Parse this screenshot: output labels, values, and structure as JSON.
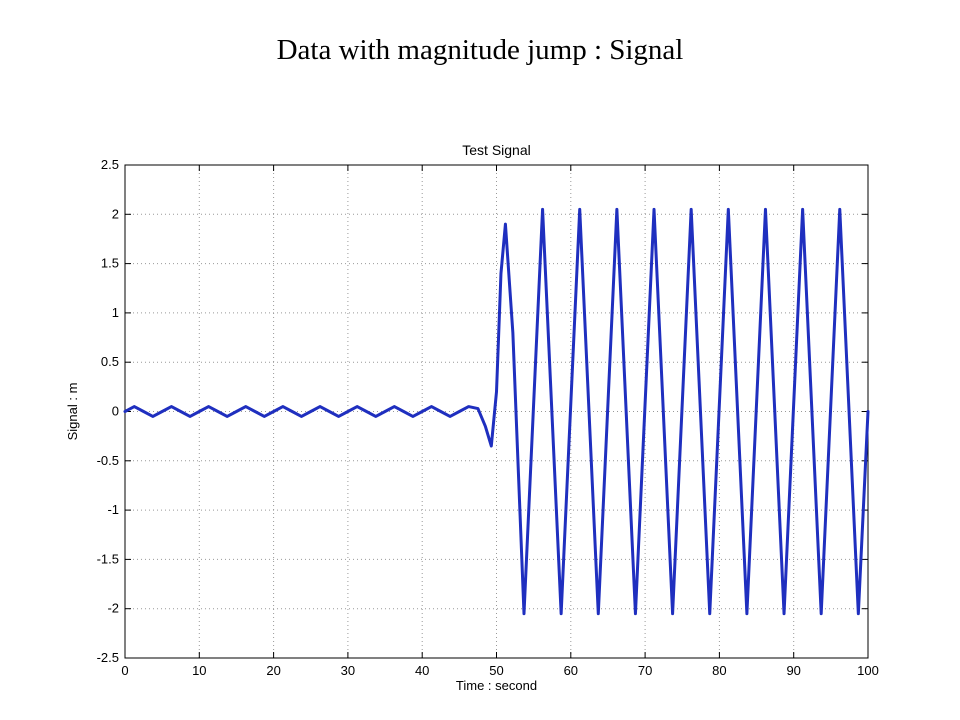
{
  "slide": {
    "title": "Data with magnitude jump : Signal"
  },
  "chart_data": {
    "type": "line",
    "title": "Test Signal",
    "xlabel": "Time : second",
    "ylabel": "Signal : m",
    "xlim": [
      0,
      100
    ],
    "ylim": [
      -2.5,
      2.5
    ],
    "xticks": [
      0,
      10,
      20,
      30,
      40,
      50,
      60,
      70,
      80,
      90,
      100
    ],
    "yticks": [
      -2.5,
      -2,
      -1.5,
      -1,
      -0.5,
      0,
      0.5,
      1,
      1.5,
      2,
      2.5
    ],
    "xtick_labels": [
      "0",
      "10",
      "20",
      "30",
      "40",
      "50",
      "60",
      "70",
      "80",
      "90",
      "100"
    ],
    "ytick_labels": [
      "-2.5",
      "-2",
      "-1.5",
      "-1",
      "-0.5",
      "0",
      "0.5",
      "1",
      "1.5",
      "2",
      "2.5"
    ],
    "grid": true,
    "line_color": "#1f2fbf",
    "series": [
      {
        "x": [
          0,
          1.25,
          2.5,
          3.75,
          5,
          6.25,
          7.5,
          8.75,
          10,
          11.25,
          12.5,
          13.75,
          15,
          16.25,
          17.5,
          18.75,
          20,
          21.25,
          22.5,
          23.75,
          25,
          26.25,
          27.5,
          28.75,
          30,
          31.25,
          32.5,
          33.75,
          35,
          36.25,
          37.5,
          38.75,
          40,
          41.25,
          42.5,
          43.75,
          45,
          46.25,
          47.5,
          48.5,
          49.3,
          50,
          50.6,
          51.2,
          52.2,
          53.7,
          56.2,
          58.7,
          61.2,
          63.7,
          66.2,
          68.7,
          71.2,
          73.7,
          76.2,
          78.7,
          81.2,
          83.7,
          86.2,
          88.7,
          91.2,
          93.7,
          96.2,
          98.7,
          100
        ],
        "y": [
          0,
          0.05,
          0,
          -0.05,
          0,
          0.05,
          0,
          -0.05,
          0,
          0.05,
          0,
          -0.05,
          0,
          0.05,
          0,
          -0.05,
          0,
          0.05,
          0,
          -0.05,
          0,
          0.05,
          0,
          -0.05,
          0,
          0.05,
          0,
          -0.05,
          0,
          0.05,
          0,
          -0.05,
          0,
          0.05,
          0,
          -0.05,
          0,
          0.05,
          0.03,
          -0.15,
          -0.35,
          0.2,
          1.4,
          1.9,
          0.8,
          -2.05,
          2.05,
          -2.05,
          2.05,
          -2.05,
          2.05,
          -2.05,
          2.05,
          -2.05,
          2.05,
          -2.05,
          2.05,
          -2.05,
          2.05,
          -2.05,
          2.05,
          -2.05,
          2.05,
          -2.05,
          0
        ]
      }
    ]
  }
}
